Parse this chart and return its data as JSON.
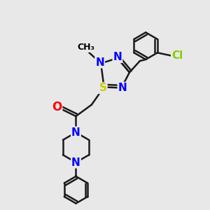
{
  "bg_color": "#e8e8e8",
  "atom_colors": {
    "N": "#0000ff",
    "O": "#ff0000",
    "S": "#cccc00",
    "Cl": "#88cc00"
  },
  "bond_color": "#1a1a1a",
  "bond_width": 1.8,
  "figsize": [
    3.0,
    3.0
  ],
  "dpi": 100
}
